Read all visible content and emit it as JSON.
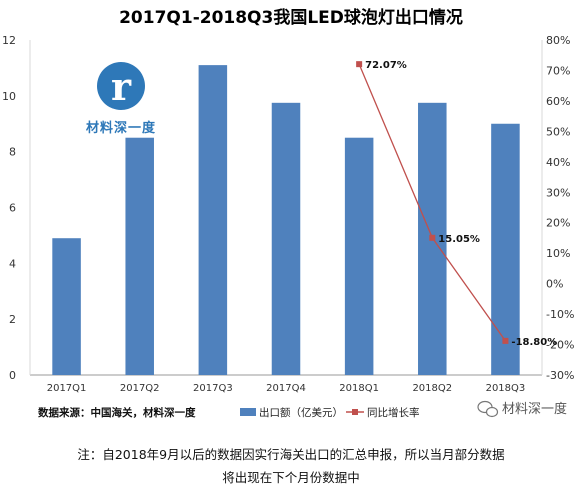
{
  "chart_data": {
    "type": "bar",
    "title": "2017Q1-2018Q3我国LED球泡灯出口情况",
    "categories": [
      "2017Q1",
      "2017Q2",
      "2017Q3",
      "2017Q4",
      "2018Q1",
      "2018Q2",
      "2018Q3"
    ],
    "series": [
      {
        "name": "出口额（亿美元）",
        "type": "bar",
        "axis": "left",
        "color": "#4f81bd",
        "values": [
          4.9,
          8.5,
          11.1,
          9.75,
          8.5,
          9.75,
          9.0
        ]
      },
      {
        "name": "同比增长率",
        "type": "line",
        "axis": "right",
        "color": "#c0504d",
        "values": [
          null,
          null,
          null,
          null,
          72.07,
          15.05,
          -18.8
        ],
        "labels": [
          null,
          null,
          null,
          null,
          "72.07%",
          "15.05%",
          "-18.80%"
        ]
      }
    ],
    "y_left": {
      "ylim": [
        0,
        12
      ],
      "ticks": [
        "0",
        "2",
        "4",
        "6",
        "8",
        "10",
        "12"
      ]
    },
    "y_right": {
      "ylim": [
        -30,
        80
      ],
      "ticks": [
        "-30%",
        "-20%",
        "-10%",
        "0%",
        "10%",
        "20%",
        "30%",
        "40%",
        "50%",
        "60%",
        "70%",
        "80%"
      ]
    },
    "grid": false,
    "legend_position": "bottom"
  },
  "source_text": "数据来源：中国海关，材料深一度",
  "watermark": {
    "logo_text": "材料深一度",
    "wechat_text": "材料深一度"
  },
  "note_line1": "注：自2018年9月以后的数据因实行海关出口的汇总申报，所以当月部分数据",
  "note_line2": "将出现在下个月份数据中"
}
